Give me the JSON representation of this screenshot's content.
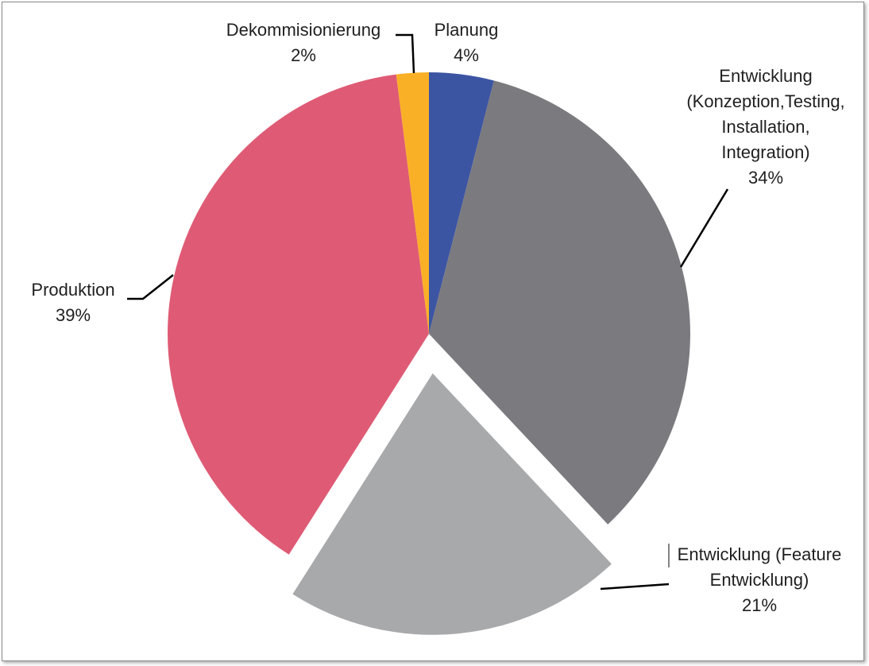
{
  "chart_data": {
    "type": "pie",
    "title": "",
    "start_angle_deg": 0,
    "direction": "clockwise",
    "slices": [
      {
        "name": "Planung",
        "value": 4,
        "value_label": "4%",
        "color": "#3c55a3",
        "label_lines": [
          "Planung"
        ],
        "exploded": false
      },
      {
        "name": "Entwicklung (Konzeption, Testing, Installation, Integration)",
        "value": 34,
        "value_label": "34%",
        "color": "#7b7a7f",
        "label_lines": [
          "Entwicklung",
          "(Konzeption,Testing,",
          "Installation,",
          "Integration)"
        ],
        "exploded": false
      },
      {
        "name": "Entwicklung (Feature Entwicklung)",
        "value": 21,
        "value_label": "21%",
        "color": "#a8a9ab",
        "label_lines": [
          "Entwicklung (Feature",
          "Entwicklung)"
        ],
        "exploded": true
      },
      {
        "name": "Produktion",
        "value": 39,
        "value_label": "39%",
        "color": "#df5b75",
        "label_lines": [
          "Produktion"
        ],
        "exploded": false
      },
      {
        "name": "Dekommisionierung",
        "value": 2,
        "value_label": "2%",
        "color": "#f9b027",
        "label_lines": [
          "Dekommisionierung"
        ],
        "exploded": false
      }
    ]
  }
}
